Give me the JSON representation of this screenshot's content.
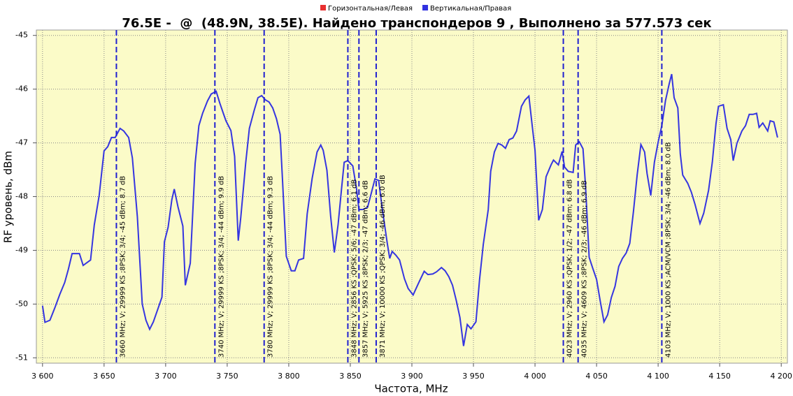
{
  "chart_data": {
    "type": "line",
    "title": "76.5E -  @  (48.9N, 38.5E). Найдено транспондеров 9 , Выполнено за 577.573 сек",
    "xlabel": "Частота, MHz",
    "ylabel": "RF уровень, dBm",
    "legend": [
      {
        "name": "Горизонтальная/Левая",
        "color": "#e83030"
      },
      {
        "name": "Вертикальная/Правая",
        "color": "#3030e0"
      }
    ],
    "color": "#3535e0",
    "marker_color": "#2020d0",
    "grid": true,
    "xlim": [
      3595,
      4205
    ],
    "ylim": [
      -44.9,
      -51.1
    ],
    "xticks": [
      {
        "value": 3600,
        "label": "3 600"
      },
      {
        "value": 3650,
        "label": "3 650"
      },
      {
        "value": 3700,
        "label": "3 700"
      },
      {
        "value": 3750,
        "label": "3 750"
      },
      {
        "value": 3800,
        "label": "3 800"
      },
      {
        "value": 3850,
        "label": "3 850"
      },
      {
        "value": 3900,
        "label": "3 900"
      },
      {
        "value": 3950,
        "label": "3 950"
      },
      {
        "value": 4000,
        "label": "4 000"
      },
      {
        "value": 4050,
        "label": "4 050"
      },
      {
        "value": 4100,
        "label": "4 100"
      },
      {
        "value": 4150,
        "label": "4 150"
      },
      {
        "value": 4200,
        "label": "4 200"
      }
    ],
    "yticks": [
      -45,
      -46,
      -47,
      -48,
      -49,
      -50,
      -51
    ],
    "x": [
      3600,
      3602,
      3606,
      3610,
      3614,
      3618,
      3621,
      3624,
      3630,
      3633,
      3639,
      3642,
      3646,
      3650,
      3653,
      3656,
      3659,
      3663,
      3666,
      3670,
      3673,
      3677,
      3681,
      3684,
      3687,
      3690,
      3694,
      3697,
      3699,
      3702,
      3705,
      3707,
      3710,
      3714,
      3716,
      3720,
      3724,
      3727,
      3730,
      3734,
      3737,
      3741,
      3744,
      3747,
      3749,
      3753,
      3756,
      3759,
      3761,
      3765,
      3768,
      3772,
      3775,
      3778,
      3781,
      3784,
      3787,
      3790,
      3793,
      3795,
      3798,
      3802,
      3805,
      3808,
      3812,
      3815,
      3819,
      3823,
      3826,
      3828,
      3831,
      3834,
      3837,
      3840,
      3843,
      3845,
      3848,
      3852,
      3855,
      3857,
      3860,
      3864,
      3866,
      3870,
      3873,
      3876,
      3880,
      3882,
      3884,
      3887,
      3890,
      3894,
      3897,
      3901,
      3903,
      3906,
      3910,
      3913,
      3917,
      3920,
      3924,
      3927,
      3930,
      3933,
      3936,
      3939,
      3942,
      3945,
      3948,
      3952,
      3955,
      3958,
      3962,
      3964,
      3967,
      3970,
      3973,
      3976,
      3979,
      3982,
      3985,
      3989,
      3992,
      3995,
      3998,
      4000,
      4003,
      4006,
      4009,
      4013,
      4015,
      4019,
      4022,
      4024,
      4027,
      4031,
      4033,
      4036,
      4039,
      4041,
      4044,
      4047,
      4050,
      4053,
      4056,
      4059,
      4062,
      4065,
      4068,
      4071,
      4074,
      4077,
      4080,
      4083,
      4086,
      4089,
      4091,
      4094,
      4097,
      4100,
      4103,
      4106,
      4109,
      4111,
      4113,
      4116,
      4118,
      4120,
      4124,
      4127,
      4130,
      4134,
      4137,
      4141,
      4144,
      4147,
      4149,
      4153,
      4156,
      4159,
      4161,
      4164,
      4168,
      4171,
      4174,
      4177,
      4180,
      4182,
      4185,
      4189,
      4191,
      4194,
      4197
    ],
    "values": [
      -50.03,
      -50.34,
      -50.3,
      -50.07,
      -49.82,
      -49.6,
      -49.35,
      -49.06,
      -49.06,
      -49.28,
      -49.18,
      -48.53,
      -47.98,
      -47.15,
      -47.07,
      -46.9,
      -46.9,
      -46.73,
      -46.78,
      -46.9,
      -47.28,
      -48.37,
      -50.0,
      -50.3,
      -50.47,
      -50.33,
      -50.07,
      -49.87,
      -48.84,
      -48.57,
      -48.06,
      -47.86,
      -48.19,
      -48.55,
      -49.65,
      -49.24,
      -47.38,
      -46.68,
      -46.45,
      -46.22,
      -46.09,
      -46.04,
      -46.26,
      -46.46,
      -46.59,
      -46.77,
      -47.25,
      -48.82,
      -48.39,
      -47.38,
      -46.73,
      -46.39,
      -46.16,
      -46.12,
      -46.2,
      -46.24,
      -46.35,
      -46.55,
      -46.84,
      -47.72,
      -49.11,
      -49.38,
      -49.38,
      -49.18,
      -49.15,
      -48.32,
      -47.66,
      -47.17,
      -47.04,
      -47.14,
      -47.51,
      -48.36,
      -49.04,
      -48.53,
      -47.83,
      -47.36,
      -47.33,
      -47.43,
      -47.85,
      -48.24,
      -48.24,
      -48.2,
      -48.03,
      -47.67,
      -47.7,
      -48.23,
      -48.87,
      -49.15,
      -49.02,
      -49.09,
      -49.18,
      -49.53,
      -49.71,
      -49.83,
      -49.73,
      -49.58,
      -49.39,
      -49.45,
      -49.44,
      -49.4,
      -49.32,
      -49.38,
      -49.49,
      -49.65,
      -49.93,
      -50.25,
      -50.78,
      -50.38,
      -50.46,
      -50.33,
      -49.54,
      -48.89,
      -48.24,
      -47.53,
      -47.17,
      -47.01,
      -47.04,
      -47.1,
      -46.94,
      -46.91,
      -46.78,
      -46.32,
      -46.2,
      -46.13,
      -46.73,
      -47.14,
      -48.44,
      -48.24,
      -47.63,
      -47.41,
      -47.32,
      -47.41,
      -47.16,
      -47.45,
      -47.53,
      -47.55,
      -47.04,
      -46.98,
      -47.11,
      -47.8,
      -49.13,
      -49.34,
      -49.54,
      -49.95,
      -50.33,
      -50.2,
      -49.88,
      -49.67,
      -49.3,
      -49.15,
      -49.05,
      -48.87,
      -48.27,
      -47.59,
      -47.03,
      -47.17,
      -47.57,
      -47.98,
      -47.36,
      -46.99,
      -46.68,
      -46.21,
      -45.9,
      -45.72,
      -46.16,
      -46.35,
      -47.2,
      -47.6,
      -47.75,
      -47.92,
      -48.15,
      -48.5,
      -48.31,
      -47.88,
      -47.36,
      -46.64,
      -46.32,
      -46.29,
      -46.73,
      -46.94,
      -47.33,
      -47.01,
      -46.78,
      -46.68,
      -46.47,
      -46.47,
      -46.45,
      -46.71,
      -46.63,
      -46.78,
      -46.59,
      -46.61,
      -46.9
    ],
    "transponders": [
      {
        "freq": 3660,
        "label": "3660 MHz; V; 29999 KS ;8PSK; 3/4; -45 dBm; 8.7 dB"
      },
      {
        "freq": 3740,
        "label": "3740 MHz; V; 29999 KS ;8PSK; 3/4; -44 dBm; 9.9 dB"
      },
      {
        "freq": 3780,
        "label": "3780 MHz; V; 29999 KS ;8PSK; 3/4; -44 dBm; 9.3 dB"
      },
      {
        "freq": 3848,
        "label": "3848 MHz; V; 2856 KS ;QPSK; 5/6; -47 dBm; 6.1 dB"
      },
      {
        "freq": 3857,
        "label": "3857 MHz; V; 5925 KS ;8PSK; 2/3; -47 dBm; 6.6 dB"
      },
      {
        "freq": 3871,
        "label": "3871 MHz; V; 10000 KS ;QPSK; 3/4; -46 dBm; 6.0 dB"
      },
      {
        "freq": 4023,
        "label": "4023 MHz; V; 2960 KS ;QPSK; 1/2; -47 dBm; 6.8 dB"
      },
      {
        "freq": 4035,
        "label": "4035 MHz; V; 4609 KS ;8PSK; 2/3; -46 dBm; 6.9 dB"
      },
      {
        "freq": 4103,
        "label": "4103 MHz; V; 1000 KS ;ACM/VCM ;8PSK; 3/4; -46 dBm; 8.0 dB"
      }
    ]
  }
}
